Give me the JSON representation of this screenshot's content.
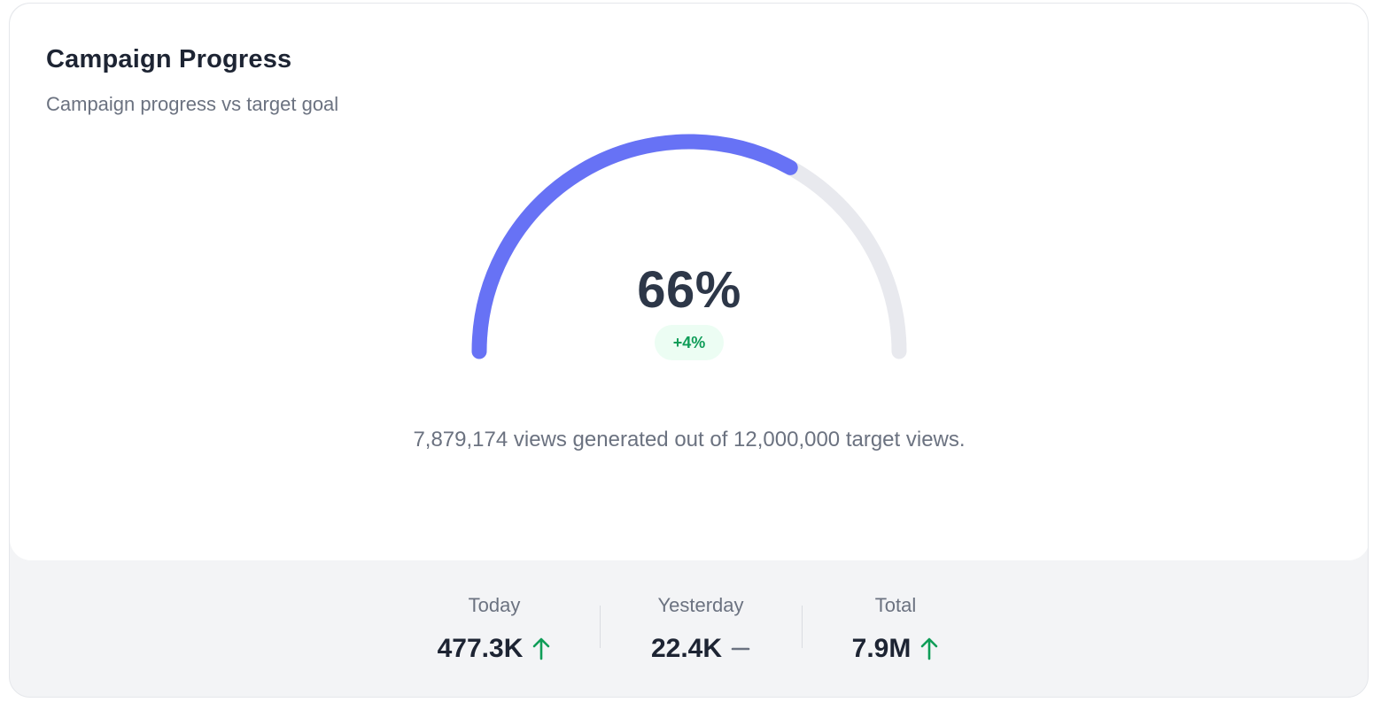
{
  "card": {
    "title": "Campaign Progress",
    "subtitle": "Campaign progress vs target goal"
  },
  "gauge": {
    "progress_fraction": 0.66,
    "percent_label": "66%",
    "delta_label": "+4%",
    "progress_color": "#6772f5",
    "track_color": "#e8e9ee"
  },
  "description": "7,879,174 views generated out of 12,000,000 target views.",
  "stats": [
    {
      "label": "Today",
      "value": "477.3K",
      "trend": "up-arrow-icon"
    },
    {
      "label": "Yesterday",
      "value": "22.4K",
      "trend": "dash-icon"
    },
    {
      "label": "Total",
      "value": "7.9M",
      "trend": "up-arrow-icon"
    }
  ],
  "colors": {
    "trend_up": "#0f9d58",
    "trend_neutral": "#6b7280"
  }
}
